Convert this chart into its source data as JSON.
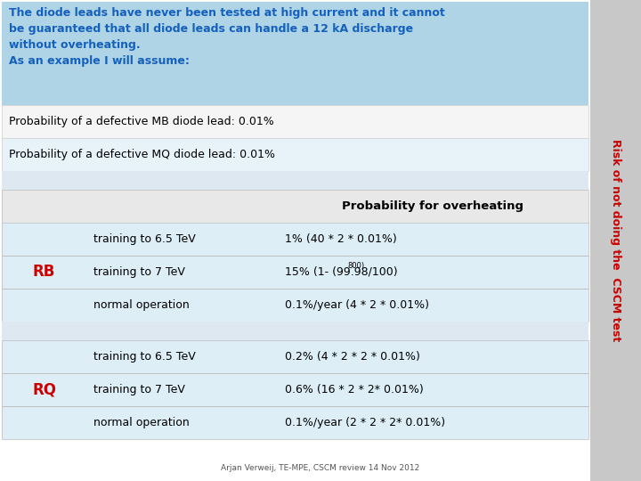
{
  "title_text": "The diode leads have never been tested at high current and it cannot\nbe guaranteed that all diode leads can handle a 12 kA discharge\nwithout overheating.\nAs an example I will assume:",
  "title_bg": "#aed4e6",
  "title_color": "#1560bd",
  "sidebar_text": "Risk of not doing the  CSCM test",
  "sidebar_bg": "#c8c8c8",
  "sidebar_color": "#cc0000",
  "prob_mb": "Probability of a defective MB diode lead: 0.01%",
  "prob_mq": "Probability of a defective MQ diode lead: 0.01%",
  "header_col3": "Probability for overheating",
  "rb_rows": [
    {
      "col2": "training to 6.5 TeV",
      "col3": "1% (40 * 2 * 0.01%)",
      "superscript": ""
    },
    {
      "col2": "training to 7 TeV",
      "col3": "15% (1- (99.98/100)",
      "superscript": "800"
    },
    {
      "col2": "normal operation",
      "col3": "0.1%/year (4 * 2 * 0.01%)",
      "superscript": ""
    }
  ],
  "rq_rows": [
    {
      "col2": "training to 6.5 TeV",
      "col3": "0.2% (4 * 2 * 2 * 0.01%)",
      "superscript": ""
    },
    {
      "col2": "training to 7 TeV",
      "col3": "0.6% (16 * 2 * 2* 0.01%)",
      "superscript": ""
    },
    {
      "col2": "normal operation",
      "col3": "0.1%/year (2 * 2 * 2* 0.01%)",
      "superscript": ""
    }
  ],
  "footnote": "Arjan Verweij, TE-MPE, CSCM review 14 Nov 2012",
  "row_label_color": "#cc0000",
  "group_bg": "#ddeef6",
  "header_row_bg": "#e8e8e8",
  "gap_bg": "#e8eef0",
  "prob_row1_bg": "#f0f0f0",
  "prob_row2_bg": "#e0ecf4"
}
